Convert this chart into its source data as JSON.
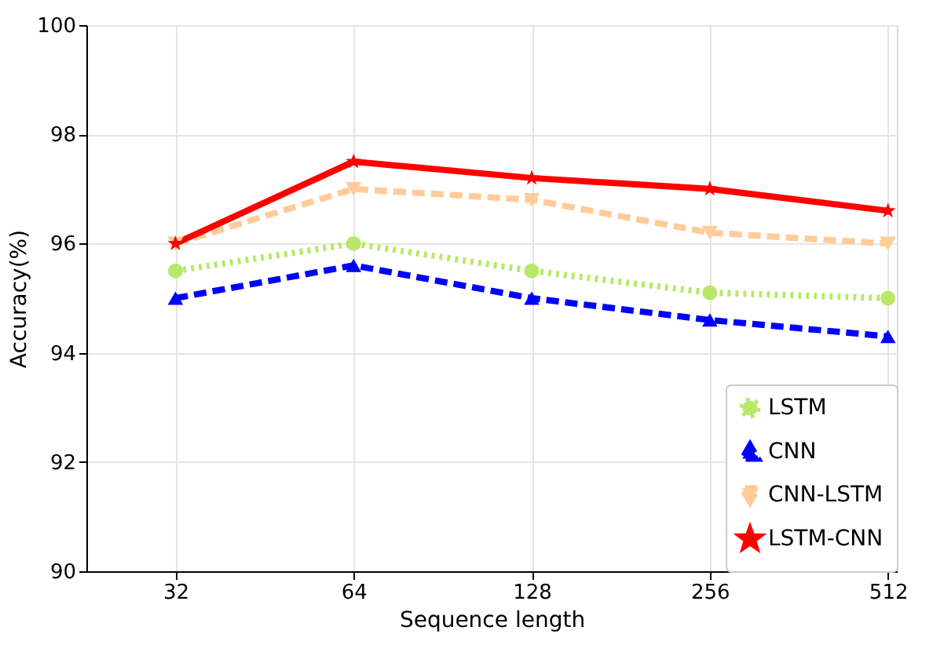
{
  "chart_data": {
    "type": "line",
    "xlabel": "Sequence length",
    "ylabel": "Accuracy(%)",
    "categories": [
      "32",
      "64",
      "128",
      "256",
      "512"
    ],
    "series": [
      {
        "name": "LSTM",
        "color": "#b8e86a",
        "marker": "circle",
        "line_style": "dotted",
        "values": [
          95.5,
          96.0,
          95.5,
          95.1,
          95.0
        ]
      },
      {
        "name": "CNN",
        "color": "#0000ff",
        "marker": "triangle",
        "line_style": "dashed",
        "values": [
          95.0,
          95.6,
          95.0,
          94.6,
          94.3
        ]
      },
      {
        "name": "CNN-LSTM",
        "color": "#ffcc99",
        "marker": "triangle-down",
        "line_style": "dashed",
        "values": [
          96.0,
          97.0,
          96.8,
          96.2,
          96.0
        ]
      },
      {
        "name": "LSTM-CNN",
        "color": "#ff0000",
        "marker": "star",
        "line_style": "solid",
        "values": [
          96.0,
          97.5,
          97.2,
          97.0,
          96.6
        ]
      }
    ],
    "ylim": [
      90,
      100
    ],
    "yticks": [
      90,
      92,
      94,
      96,
      98,
      100
    ],
    "grid": true,
    "legend": "bottom right"
  }
}
